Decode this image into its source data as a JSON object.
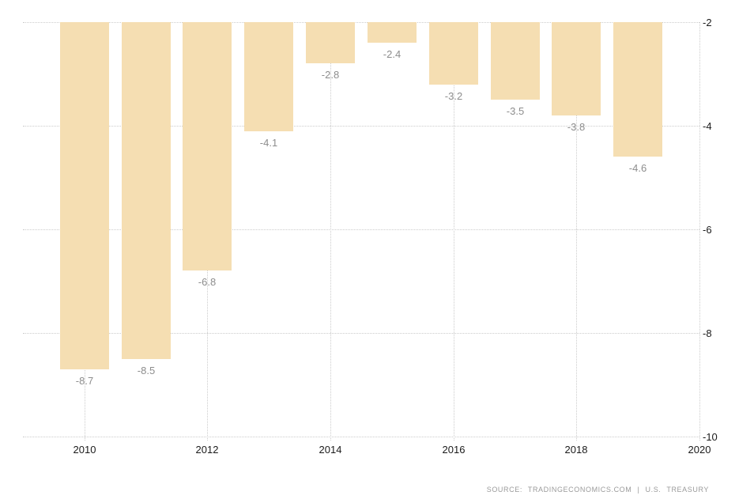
{
  "chart_data": {
    "type": "bar",
    "title": "",
    "xlabel": "",
    "ylabel": "",
    "categories": [
      2010,
      2011,
      2012,
      2013,
      2014,
      2015,
      2016,
      2017,
      2018,
      2019
    ],
    "values": [
      -8.7,
      -8.5,
      -6.8,
      -4.1,
      -2.8,
      -2.4,
      -3.2,
      -3.5,
      -3.8,
      -4.6
    ],
    "value_labels": [
      "-8.7",
      "-8.5",
      "-6.8",
      "-4.1",
      "-2.8",
      "-2.4",
      "-3.2",
      "-3.5",
      "-3.8",
      "-4.6"
    ],
    "x_ticks": [
      2010,
      2012,
      2014,
      2016,
      2018,
      2020
    ],
    "x_domain": [
      2009,
      2020
    ],
    "y_ticks": [
      -2,
      -4,
      -6,
      -8,
      -10
    ],
    "ylim": [
      -10,
      -2
    ],
    "grid": "dotted",
    "legend_position": "none",
    "colors": {
      "bar": "#f5deb2",
      "value_label": "#8d8d8d",
      "axis_label": "#1a1a1a",
      "gridline": "#cccccc",
      "background": "#ffffff",
      "source_text": "#9a9a9a"
    }
  },
  "footer": {
    "source_text": "SOURCE: TRADINGECONOMICS.COM | U.S. TREASURY"
  }
}
